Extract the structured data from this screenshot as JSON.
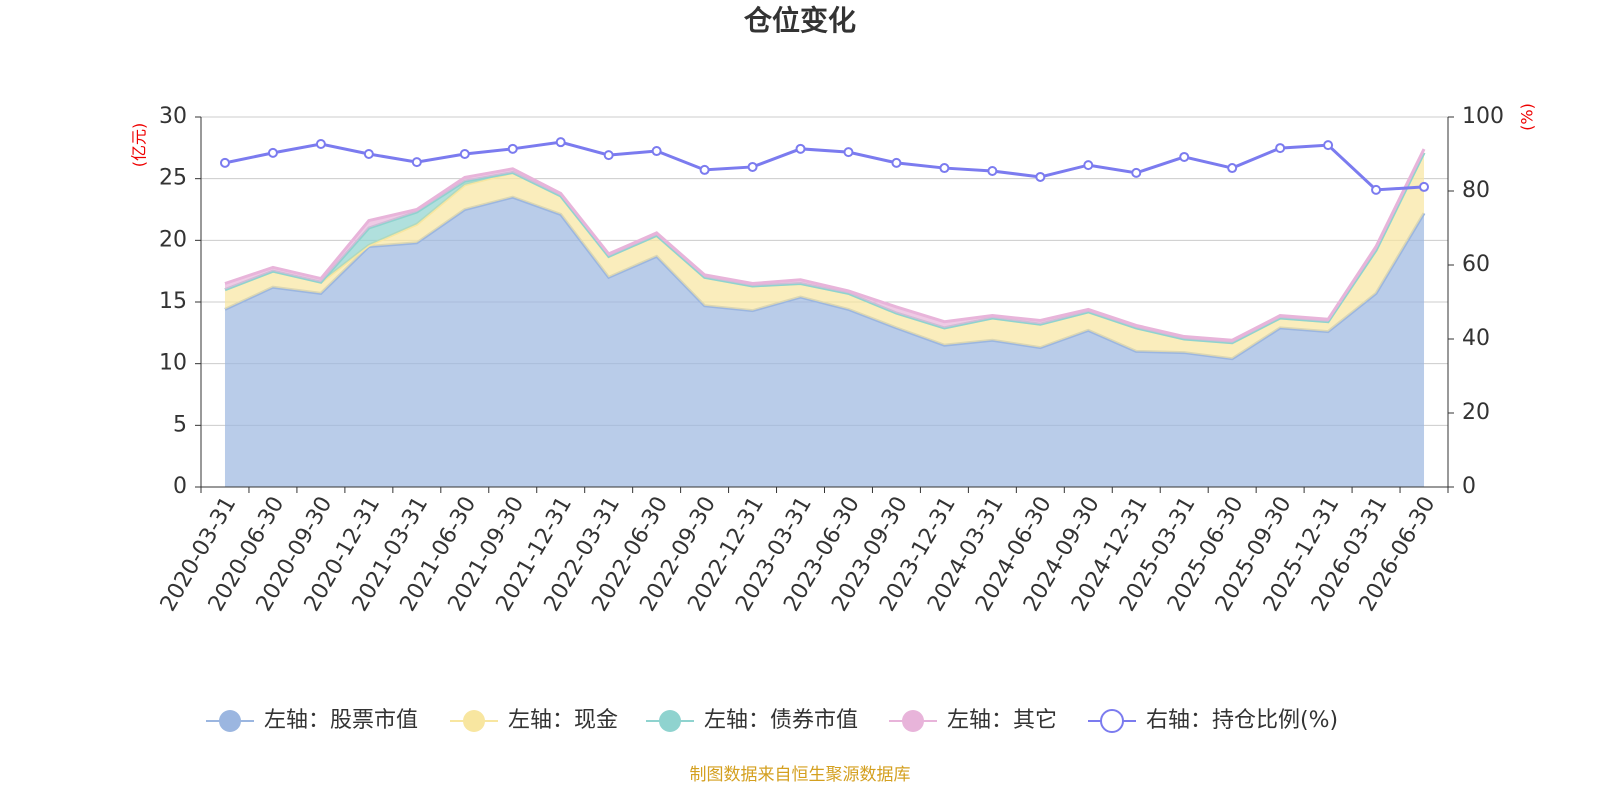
{
  "chart_data": {
    "type": "area",
    "title": "仓位变化",
    "y_label": "(亿元)",
    "y2_label": "(%)",
    "source": "制图数据来自恒生聚源数据库",
    "categories": [
      "2020-03-31",
      "2020-06-30",
      "2020-09-30",
      "2020-12-31",
      "2021-03-31",
      "2021-06-30",
      "2021-09-30",
      "2021-12-31",
      "2022-03-31",
      "2022-06-30",
      "2022-09-30",
      "2022-12-31",
      "2023-03-31",
      "2023-06-30",
      "2023-09-30",
      "2023-12-31",
      "2024-03-31",
      "2024-06-30",
      "2024-09-30",
      "2024-12-31",
      "2025-03-31",
      "2025-06-30",
      "2025-09-30",
      "2025-12-31",
      "2026-03-31",
      "2026-06-30"
    ],
    "series": [
      {
        "name": "左轴：股票市值",
        "color": "#9bb6e0",
        "values": [
          14.4,
          16.2,
          15.7,
          19.5,
          19.8,
          22.5,
          23.5,
          22.1,
          17.0,
          18.7,
          14.7,
          14.3,
          15.4,
          14.4,
          12.9,
          11.5,
          11.9,
          11.3,
          12.7,
          11.0,
          10.9,
          10.4,
          12.9,
          12.6,
          15.7,
          22.2
        ]
      },
      {
        "name": "左轴：现金",
        "color": "#f8e6a0",
        "values": [
          1.6,
          1.3,
          0.9,
          0.1,
          1.5,
          2.0,
          2.0,
          1.5,
          1.7,
          1.7,
          2.3,
          2.0,
          1.1,
          1.3,
          1.2,
          1.4,
          1.8,
          1.9,
          1.5,
          1.9,
          1.1,
          1.3,
          0.8,
          0.8,
          3.5,
          4.9
        ]
      },
      {
        "name": "左轴：债券市值",
        "color": "#8fd3cf",
        "values": [
          0,
          0,
          0,
          1.4,
          1.0,
          0.3,
          0,
          0,
          0,
          0,
          0,
          0,
          0,
          0,
          0,
          0,
          0,
          0,
          0,
          0,
          0,
          0,
          0,
          0,
          0,
          0
        ]
      },
      {
        "name": "左轴：其它",
        "color": "#e8b4da",
        "values": [
          0.5,
          0.3,
          0.3,
          0.6,
          0.2,
          0.3,
          0.3,
          0.2,
          0.2,
          0.2,
          0.2,
          0.2,
          0.3,
          0.2,
          0.5,
          0.5,
          0.2,
          0.3,
          0.2,
          0.2,
          0.2,
          0.2,
          0.2,
          0.2,
          0.3,
          0.3
        ]
      },
      {
        "name": "右轴：持仓比例(%)",
        "color": "#7b7bef",
        "axis": "y2",
        "values": [
          87.6,
          90.3,
          92.7,
          90.0,
          87.8,
          90.0,
          91.4,
          93.2,
          89.7,
          90.8,
          85.7,
          86.5,
          91.4,
          90.5,
          87.6,
          86.2,
          85.4,
          83.8,
          87.0,
          84.9,
          89.2,
          86.2,
          91.6,
          92.4,
          80.3,
          81.1
        ]
      }
    ],
    "ylim": [
      0,
      30
    ],
    "yticks": [
      0,
      5,
      10,
      15,
      20,
      25,
      30
    ],
    "y2lim": [
      0,
      100
    ],
    "y2ticks": [
      0,
      20,
      40,
      60,
      80,
      100
    ],
    "grid": true
  }
}
